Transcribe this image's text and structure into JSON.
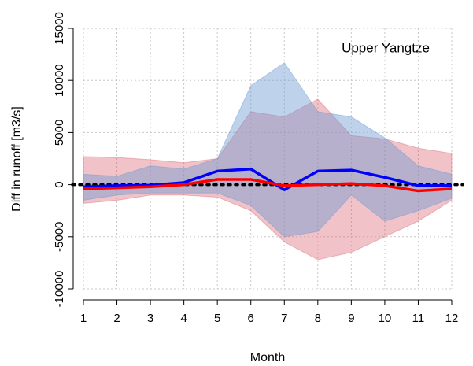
{
  "chart_data": {
    "type": "line",
    "title": "Upper Yangtze",
    "x_label": "Month",
    "y_label": "Diff in runoff [m3/s]",
    "x": [
      1,
      2,
      3,
      4,
      5,
      6,
      7,
      8,
      9,
      10,
      11,
      12
    ],
    "xlim": [
      1,
      12
    ],
    "xticks": [
      1,
      2,
      3,
      4,
      5,
      6,
      7,
      8,
      9,
      10,
      11,
      12
    ],
    "ylim": [
      -10000,
      15000
    ],
    "yticks": [
      -10000,
      -5000,
      0,
      5000,
      10000,
      15000
    ],
    "grid": true,
    "reference_line": 0,
    "bands": [
      {
        "color": "rgba(214,80,95,0.35)",
        "upper": [
          2700,
          2600,
          2400,
          2100,
          2500,
          7000,
          6500,
          8200,
          4700,
          4400,
          3500,
          3000
        ],
        "lower": [
          -1800,
          -1500,
          -1000,
          -1000,
          -1200,
          -2500,
          -5500,
          -7200,
          -6500,
          -5000,
          -3500,
          -1500
        ]
      },
      {
        "color": "rgba(110,155,210,0.45)",
        "upper": [
          1000,
          800,
          1800,
          1500,
          2500,
          9500,
          11700,
          7000,
          6500,
          4500,
          1800,
          1000
        ],
        "lower": [
          -1500,
          -1000,
          -800,
          -800,
          -800,
          -2000,
          -5000,
          -4500,
          -1000,
          -3500,
          -2500,
          -1300
        ]
      }
    ],
    "series": [
      {
        "color": "#0000ff",
        "values": [
          -200,
          -100,
          -50,
          200,
          1300,
          1500,
          -500,
          1300,
          1400,
          700,
          -100,
          -100
        ]
      },
      {
        "color": "#ff0000",
        "values": [
          -400,
          -300,
          -200,
          0,
          500,
          500,
          -100,
          0,
          100,
          -100,
          -600,
          -400
        ]
      }
    ]
  }
}
